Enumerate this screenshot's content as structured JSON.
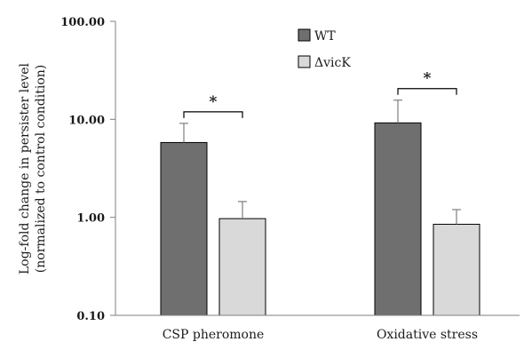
{
  "chart_data": {
    "type": "bar",
    "title": "",
    "ylabel_lines": [
      "Log-fold change in persister level",
      "(normalized to control condition)"
    ],
    "xlabel": "",
    "yscale": "log",
    "ylim": [
      0.1,
      100
    ],
    "yticks": [
      {
        "value": 0.1,
        "label": "0.10"
      },
      {
        "value": 1,
        "label": "1.00"
      },
      {
        "value": 10,
        "label": "10.00"
      },
      {
        "value": 100,
        "label": "100.00"
      }
    ],
    "categories": [
      "CSP pheromone",
      "Oxidative stress"
    ],
    "series": [
      {
        "name": "WT",
        "color": "#6f6f6f",
        "values": [
          5.8,
          9.2
        ],
        "errors": [
          3.3,
          6.5
        ]
      },
      {
        "name": "ΔvicK",
        "color": "#d9d9d9",
        "values": [
          0.97,
          0.85
        ],
        "errors": [
          0.48,
          0.35
        ]
      }
    ],
    "significance": [
      {
        "category_index": 0,
        "label": "*"
      },
      {
        "category_index": 1,
        "label": "*"
      }
    ],
    "grid": false,
    "legend_position": "top-center"
  }
}
